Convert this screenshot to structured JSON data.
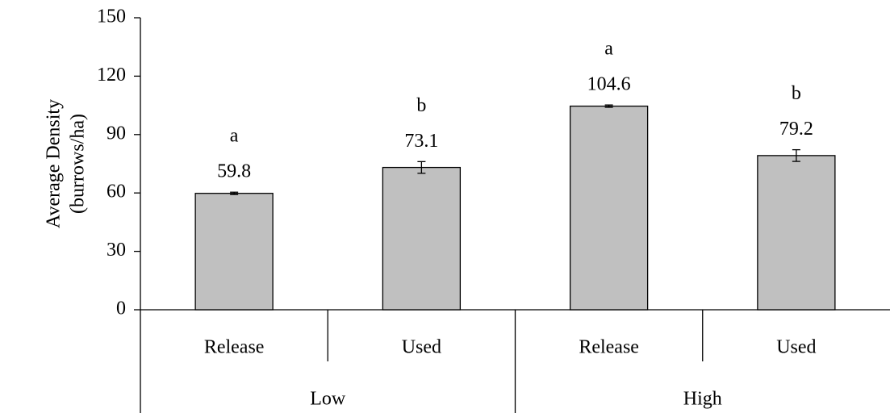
{
  "chart_data": {
    "type": "bar",
    "y_label_lines": [
      "Average Density",
      "(burrows/ha)"
    ],
    "categories": [
      "Release",
      "Used",
      "Release",
      "Used"
    ],
    "groups": [
      "Low",
      "High"
    ],
    "values": [
      59.8,
      73.1,
      104.6,
      79.2
    ],
    "errors": [
      0.6,
      3,
      0.6,
      3
    ],
    "letters": [
      "a",
      "b",
      "a",
      "b"
    ],
    "color": "#c0c0c0",
    "ylim": [
      0,
      150
    ],
    "yticks": [
      0,
      30,
      60,
      90,
      120,
      150
    ]
  }
}
